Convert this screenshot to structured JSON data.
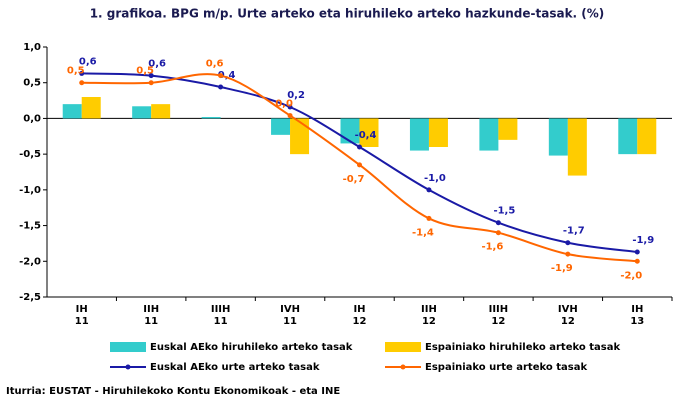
{
  "chart_data": {
    "type": "bar-line",
    "title": "1. grafikoa. BPG m/p. Urte arteko eta hiruhileko arteko hazkunde-tasak. (%)",
    "source": "Iturria: EUSTAT - Hiruhilekoko Kontu Ekonomikoak - eta INE",
    "categories": [
      [
        "IH",
        "11"
      ],
      [
        "IIH",
        "11"
      ],
      [
        "IIIH",
        "11"
      ],
      [
        "IVH",
        "11"
      ],
      [
        "IH",
        "12"
      ],
      [
        "IIH",
        "12"
      ],
      [
        "IIIH",
        "12"
      ],
      [
        "IVH",
        "12"
      ],
      [
        "IH",
        "13"
      ]
    ],
    "ylim": [
      -2.5,
      1.0
    ],
    "yticks": [
      {
        "value": -2.5,
        "label": "-2,5"
      },
      {
        "value": -2.0,
        "label": "-2,0"
      },
      {
        "value": -1.5,
        "label": "-1,5"
      },
      {
        "value": -1.0,
        "label": "-1,0"
      },
      {
        "value": -0.5,
        "label": "-0,5"
      },
      {
        "value": 0,
        "label": "0,0"
      },
      {
        "value": 0.5,
        "label": "0,5"
      },
      {
        "value": 1.0,
        "label": "1,0"
      }
    ],
    "grid": false,
    "series": [
      {
        "name": "Euskal AEko hiruhileko arteko tasak",
        "kind": "bar",
        "color": "#33cccc",
        "values": [
          0.2,
          0.17,
          0.02,
          -0.23,
          -0.35,
          -0.45,
          -0.45,
          -0.52,
          -0.5
        ]
      },
      {
        "name": "Espainiako hiruhileko arteko tasak",
        "kind": "bar",
        "color": "#ffcc00",
        "values": [
          0.3,
          0.2,
          0.0,
          -0.5,
          -0.4,
          -0.4,
          -0.3,
          -0.8,
          -0.5
        ]
      },
      {
        "name": "Euskal AEko urte arteko tasak",
        "kind": "line",
        "color": "#1a1aa6",
        "values": [
          0.63,
          0.6,
          0.44,
          0.16,
          -0.4,
          -1.0,
          -1.46,
          -1.74,
          -1.87
        ],
        "value_labels": [
          "0,6",
          "0,6",
          "0,4",
          "0,2",
          "-0,4",
          "-1,0",
          "-1,5",
          "-1,7",
          "-1,9"
        ]
      },
      {
        "name": "Espainiako urte arteko tasak",
        "kind": "line",
        "color": "#ff6600",
        "values": [
          0.5,
          0.5,
          0.6,
          0.04,
          -0.65,
          -1.4,
          -1.6,
          -1.9,
          -2.0
        ],
        "value_labels": [
          "0,5",
          "0,5",
          "0,6",
          "0,0",
          "-0,7",
          "-1,4",
          "-1,6",
          "-1,9",
          "-2,0"
        ]
      }
    ]
  }
}
